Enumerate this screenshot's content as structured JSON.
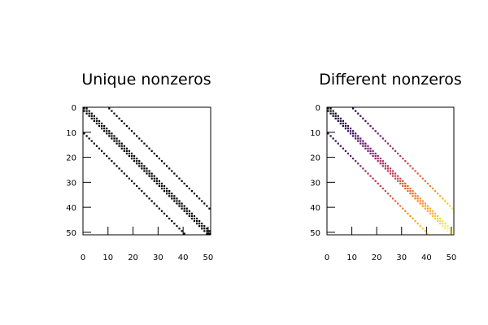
{
  "chart_data": [
    {
      "type": "spy",
      "title": "Unique nonzeros",
      "xlabel": "",
      "ylabel": "",
      "xlim": [
        0,
        51
      ],
      "ylim": [
        51,
        0
      ],
      "x_ticks": [
        0,
        10,
        20,
        30,
        40,
        50
      ],
      "y_ticks": [
        0,
        10,
        20,
        30,
        40,
        50
      ],
      "matrix_size": 51,
      "diagonal_offsets": [
        -10,
        -1,
        0,
        1,
        10
      ],
      "color_mode": "uniform",
      "marker_color": "#000000",
      "grid": false
    },
    {
      "type": "spy",
      "title": "Different nonzeros",
      "xlabel": "",
      "ylabel": "",
      "xlim": [
        0,
        51
      ],
      "ylim": [
        51,
        0
      ],
      "x_ticks": [
        0,
        10,
        20,
        30,
        40,
        50
      ],
      "y_ticks": [
        0,
        10,
        20,
        30,
        40,
        50
      ],
      "matrix_size": 51,
      "diagonal_offsets": [
        -10,
        -1,
        0,
        1,
        10
      ],
      "color_mode": "by_index",
      "colormap": [
        "#000004",
        "#320a5e",
        "#781c6d",
        "#bc3754",
        "#ed6925",
        "#fbb61a",
        "#fcffa4"
      ],
      "grid": false
    }
  ]
}
